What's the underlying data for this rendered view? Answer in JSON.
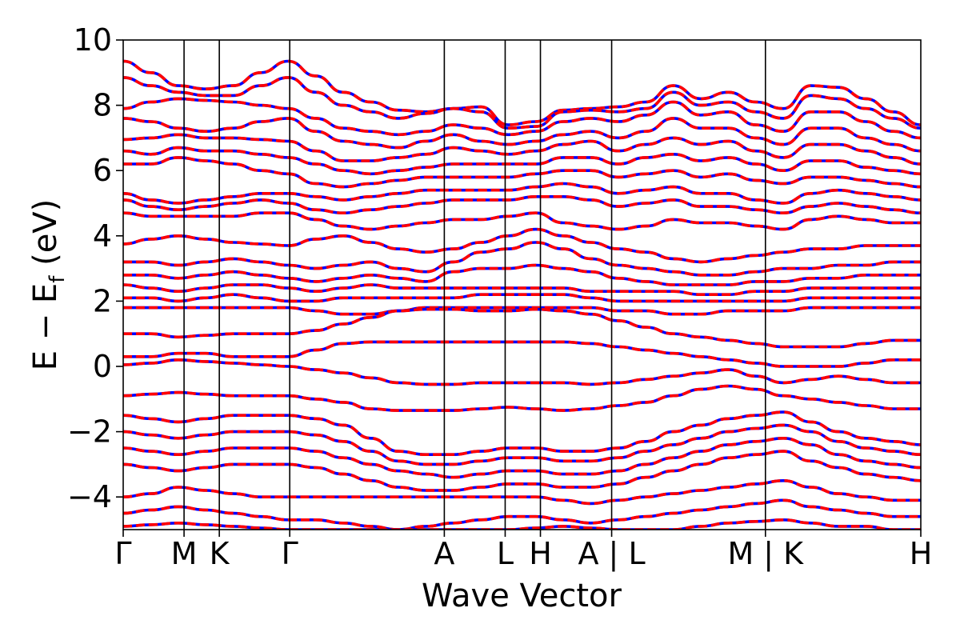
{
  "chart_data": {
    "type": "line",
    "xlabel": "Wave Vector",
    "ylabel_main": "E − E",
    "ylabel_sub": "f",
    "ylabel_unit": " (eV)",
    "ylim": [
      -5,
      10
    ],
    "yticks": [
      {
        "value": -4,
        "label": "−4"
      },
      {
        "value": -2,
        "label": "−2"
      },
      {
        "value": 0,
        "label": "0"
      },
      {
        "value": 2,
        "label": "2"
      },
      {
        "value": 4,
        "label": "4"
      },
      {
        "value": 6,
        "label": "6"
      },
      {
        "value": 8,
        "label": "8"
      },
      {
        "value": 10,
        "label": "10"
      }
    ],
    "xlim": [
      0,
      1
    ],
    "kpoints": [
      {
        "label": "Γ",
        "pos": 0.0
      },
      {
        "label": "M",
        "pos": 0.0763
      },
      {
        "label": "K",
        "pos": 0.1205
      },
      {
        "label": "Γ",
        "pos": 0.2088
      },
      {
        "label": "A",
        "pos": 0.4026
      },
      {
        "label": "L",
        "pos": 0.4789
      },
      {
        "label": "H",
        "pos": 0.5231
      },
      {
        "label": "A | L",
        "pos": 0.6124
      },
      {
        "label": "M | K",
        "pos": 0.8052
      },
      {
        "label": "H",
        "pos": 1.0
      }
    ],
    "series": [
      {
        "color": "#0000ff",
        "style": "solid"
      },
      {
        "color": "#ff0000",
        "style": "dashed"
      }
    ],
    "bands": [
      [
        9.35,
        9.0,
        8.6,
        8.5,
        8.6,
        9.0,
        9.35,
        8.9,
        8.4,
        8.1,
        7.85,
        7.8,
        7.9,
        7.95,
        7.4,
        7.5,
        7.85,
        7.9,
        7.95,
        8.1,
        8.6,
        8.2,
        8.4,
        8.1,
        7.9,
        8.6,
        8.55,
        8.2,
        7.8,
        7.4
      ],
      [
        8.85,
        8.6,
        8.4,
        8.3,
        8.3,
        8.6,
        8.85,
        8.4,
        8.0,
        7.8,
        7.6,
        7.75,
        7.9,
        7.8,
        7.3,
        7.35,
        7.8,
        7.85,
        7.8,
        7.9,
        8.4,
        8.0,
        8.1,
        7.8,
        7.6,
        8.3,
        8.2,
        7.9,
        7.6,
        7.3
      ],
      [
        7.9,
        8.1,
        8.2,
        8.15,
        8.1,
        8.0,
        7.9,
        7.6,
        7.3,
        7.2,
        7.1,
        7.2,
        7.4,
        7.3,
        7.1,
        7.2,
        7.5,
        7.6,
        7.5,
        7.7,
        8.1,
        7.7,
        7.8,
        7.4,
        7.2,
        7.8,
        7.8,
        7.5,
        7.2,
        7.0
      ],
      [
        7.6,
        7.5,
        7.3,
        7.2,
        7.3,
        7.5,
        7.6,
        7.2,
        6.9,
        6.8,
        6.7,
        6.9,
        7.1,
        6.9,
        6.8,
        6.9,
        7.1,
        7.2,
        7.0,
        7.2,
        7.6,
        7.3,
        7.3,
        7.0,
        6.8,
        7.3,
        7.3,
        7.0,
        6.8,
        6.6
      ],
      [
        6.95,
        7.0,
        7.1,
        7.0,
        7.0,
        6.95,
        6.9,
        6.6,
        6.3,
        6.3,
        6.4,
        6.5,
        6.7,
        6.6,
        6.5,
        6.6,
        6.8,
        6.9,
        6.6,
        6.8,
        7.0,
        6.8,
        6.9,
        6.6,
        6.4,
        6.8,
        6.8,
        6.6,
        6.4,
        6.2
      ],
      [
        6.6,
        6.5,
        6.7,
        6.6,
        6.6,
        6.5,
        6.4,
        6.2,
        6.0,
        5.9,
        6.0,
        6.1,
        6.2,
        6.2,
        6.2,
        6.2,
        6.4,
        6.4,
        6.2,
        6.4,
        6.5,
        6.3,
        6.4,
        6.2,
        6.0,
        6.3,
        6.3,
        6.1,
        6.0,
        5.9
      ],
      [
        6.2,
        6.2,
        6.4,
        6.3,
        6.2,
        6.0,
        5.9,
        5.6,
        5.5,
        5.6,
        5.7,
        5.8,
        5.8,
        5.8,
        5.8,
        5.9,
        6.0,
        6.0,
        5.8,
        5.9,
        6.0,
        5.8,
        5.9,
        5.7,
        5.6,
        5.8,
        5.8,
        5.7,
        5.6,
        5.5
      ],
      [
        5.3,
        5.1,
        5.0,
        5.1,
        5.2,
        5.3,
        5.3,
        5.2,
        5.1,
        5.2,
        5.3,
        5.4,
        5.4,
        5.4,
        5.4,
        5.5,
        5.6,
        5.5,
        5.3,
        5.4,
        5.5,
        5.3,
        5.3,
        5.1,
        5.0,
        5.3,
        5.4,
        5.3,
        5.2,
        5.1
      ],
      [
        5.1,
        4.9,
        4.8,
        4.9,
        5.0,
        5.1,
        5.0,
        4.8,
        4.7,
        4.8,
        4.9,
        5.0,
        5.1,
        5.1,
        5.1,
        5.2,
        5.2,
        5.1,
        4.9,
        5.0,
        5.1,
        4.9,
        4.9,
        4.8,
        4.7,
        4.9,
        5.0,
        4.9,
        4.8,
        4.7
      ],
      [
        4.7,
        4.6,
        4.6,
        4.6,
        4.6,
        4.7,
        4.7,
        4.5,
        4.3,
        4.2,
        4.3,
        4.4,
        4.5,
        4.5,
        4.6,
        4.7,
        4.4,
        4.3,
        4.2,
        4.3,
        4.5,
        4.4,
        4.4,
        4.3,
        4.2,
        4.5,
        4.6,
        4.5,
        4.4,
        4.4
      ],
      [
        3.75,
        3.9,
        4.0,
        3.9,
        3.8,
        3.75,
        3.7,
        3.9,
        4.0,
        3.8,
        3.6,
        3.5,
        3.6,
        3.8,
        4.0,
        4.2,
        4.0,
        3.8,
        3.6,
        3.5,
        3.3,
        3.2,
        3.3,
        3.4,
        3.5,
        3.6,
        3.6,
        3.7,
        3.7,
        3.7
      ],
      [
        3.2,
        3.2,
        3.1,
        3.2,
        3.3,
        3.2,
        3.1,
        3.0,
        3.1,
        3.2,
        3.0,
        2.9,
        3.2,
        3.5,
        3.6,
        3.8,
        3.6,
        3.3,
        3.1,
        3.0,
        2.9,
        2.8,
        2.8,
        2.9,
        3.0,
        3.0,
        3.1,
        3.1,
        3.2,
        3.2
      ],
      [
        2.8,
        2.8,
        2.7,
        2.8,
        2.9,
        2.8,
        2.7,
        2.6,
        2.7,
        2.8,
        2.7,
        2.6,
        2.9,
        3.0,
        3.0,
        3.1,
        3.0,
        2.9,
        2.7,
        2.6,
        2.5,
        2.5,
        2.5,
        2.6,
        2.6,
        2.7,
        2.7,
        2.8,
        2.8,
        2.8
      ],
      [
        2.5,
        2.4,
        2.3,
        2.4,
        2.5,
        2.5,
        2.4,
        2.3,
        2.4,
        2.5,
        2.4,
        2.4,
        2.4,
        2.4,
        2.4,
        2.4,
        2.4,
        2.3,
        2.3,
        2.3,
        2.3,
        2.2,
        2.2,
        2.3,
        2.3,
        2.4,
        2.4,
        2.4,
        2.4,
        2.4
      ],
      [
        2.1,
        2.1,
        2.0,
        2.1,
        2.2,
        2.1,
        2.0,
        2.0,
        2.1,
        2.1,
        2.1,
        2.1,
        2.1,
        2.2,
        2.2,
        2.2,
        2.2,
        2.1,
        2.0,
        2.0,
        2.0,
        2.0,
        2.0,
        2.0,
        2.0,
        2.1,
        2.1,
        2.1,
        2.1,
        2.1
      ],
      [
        1.8,
        1.8,
        1.8,
        1.8,
        1.8,
        1.8,
        1.8,
        1.7,
        1.6,
        1.6,
        1.7,
        1.8,
        1.8,
        1.8,
        1.8,
        1.8,
        1.8,
        1.8,
        1.7,
        1.7,
        1.6,
        1.6,
        1.7,
        1.7,
        1.7,
        1.8,
        1.8,
        1.8,
        1.8,
        1.8
      ],
      [
        1.0,
        1.0,
        0.9,
        0.95,
        1.0,
        1.0,
        1.0,
        1.1,
        1.3,
        1.5,
        1.7,
        1.75,
        1.75,
        1.7,
        1.7,
        1.75,
        1.7,
        1.6,
        1.4,
        1.2,
        1.0,
        0.9,
        0.8,
        0.7,
        0.6,
        0.6,
        0.6,
        0.7,
        0.8,
        0.8
      ],
      [
        0.3,
        0.3,
        0.4,
        0.4,
        0.3,
        0.3,
        0.3,
        0.5,
        0.7,
        0.75,
        0.75,
        0.75,
        0.75,
        0.75,
        0.75,
        0.75,
        0.75,
        0.7,
        0.6,
        0.5,
        0.4,
        0.3,
        0.2,
        0.1,
        0.0,
        0.0,
        0.0,
        0.1,
        0.2,
        0.2
      ],
      [
        0.05,
        0.1,
        0.2,
        0.15,
        0.1,
        0.05,
        0.0,
        -0.1,
        -0.2,
        -0.35,
        -0.5,
        -0.55,
        -0.55,
        -0.5,
        -0.5,
        -0.5,
        -0.5,
        -0.55,
        -0.5,
        -0.4,
        -0.3,
        -0.2,
        -0.1,
        -0.3,
        -0.5,
        -0.4,
        -0.3,
        -0.4,
        -0.5,
        -0.5
      ],
      [
        -0.9,
        -0.85,
        -0.8,
        -0.85,
        -0.9,
        -0.9,
        -0.9,
        -1.0,
        -1.1,
        -1.3,
        -1.35,
        -1.35,
        -1.35,
        -1.3,
        -1.25,
        -1.3,
        -1.35,
        -1.3,
        -1.2,
        -1.1,
        -0.9,
        -0.7,
        -0.6,
        -0.7,
        -0.9,
        -1.0,
        -1.1,
        -1.2,
        -1.3,
        -1.3
      ],
      [
        -1.5,
        -1.6,
        -1.7,
        -1.6,
        -1.5,
        -1.5,
        -1.5,
        -1.6,
        -1.8,
        -2.2,
        -2.6,
        -2.7,
        -2.7,
        -2.6,
        -2.5,
        -2.5,
        -2.6,
        -2.6,
        -2.5,
        -2.3,
        -2.0,
        -1.8,
        -1.6,
        -1.5,
        -1.4,
        -1.7,
        -2.0,
        -2.2,
        -2.3,
        -2.4
      ],
      [
        -2.0,
        -2.1,
        -2.2,
        -2.1,
        -2.0,
        -2.0,
        -2.0,
        -2.1,
        -2.3,
        -2.6,
        -2.9,
        -3.0,
        -3.0,
        -2.9,
        -2.8,
        -2.8,
        -2.9,
        -2.9,
        -2.8,
        -2.6,
        -2.4,
        -2.2,
        -2.0,
        -1.9,
        -1.8,
        -2.0,
        -2.3,
        -2.5,
        -2.6,
        -2.7
      ],
      [
        -2.5,
        -2.6,
        -2.7,
        -2.6,
        -2.5,
        -2.5,
        -2.5,
        -2.6,
        -2.8,
        -3.0,
        -3.2,
        -3.3,
        -3.4,
        -3.3,
        -3.2,
        -3.2,
        -3.3,
        -3.3,
        -3.2,
        -3.0,
        -2.8,
        -2.6,
        -2.4,
        -2.3,
        -2.2,
        -2.4,
        -2.7,
        -2.9,
        -3.0,
        -3.1
      ],
      [
        -3.0,
        -3.1,
        -3.2,
        -3.1,
        -3.0,
        -3.0,
        -3.0,
        -3.1,
        -3.3,
        -3.5,
        -3.7,
        -3.8,
        -3.8,
        -3.7,
        -3.6,
        -3.6,
        -3.7,
        -3.7,
        -3.6,
        -3.4,
        -3.2,
        -3.0,
        -2.8,
        -2.7,
        -2.6,
        -2.9,
        -3.1,
        -3.3,
        -3.4,
        -3.5
      ],
      [
        -4.0,
        -3.9,
        -3.7,
        -3.8,
        -3.9,
        -4.0,
        -4.0,
        -4.0,
        -4.0,
        -4.0,
        -4.0,
        -4.0,
        -4.0,
        -4.0,
        -4.0,
        -4.0,
        -4.1,
        -4.2,
        -4.1,
        -4.0,
        -3.9,
        -3.8,
        -3.7,
        -3.6,
        -3.5,
        -3.7,
        -3.9,
        -4.0,
        -4.1,
        -4.1
      ],
      [
        -4.5,
        -4.4,
        -4.3,
        -4.4,
        -4.5,
        -4.6,
        -4.7,
        -4.7,
        -4.8,
        -4.9,
        -5.0,
        -4.9,
        -4.8,
        -4.7,
        -4.6,
        -4.6,
        -4.7,
        -4.8,
        -4.7,
        -4.6,
        -4.5,
        -4.4,
        -4.3,
        -4.2,
        -4.1,
        -4.3,
        -4.4,
        -4.5,
        -4.6,
        -4.6
      ],
      [
        -4.9,
        -4.85,
        -4.8,
        -4.85,
        -4.9,
        -4.95,
        -5.0,
        -5.0,
        -5.0,
        -5.0,
        -5.0,
        -5.0,
        -5.0,
        -5.0,
        -5.0,
        -4.95,
        -4.9,
        -4.95,
        -5.0,
        -5.0,
        -5.0,
        -4.9,
        -4.8,
        -4.75,
        -4.7,
        -4.8,
        -4.9,
        -4.9,
        -5.0,
        -5.0
      ]
    ]
  }
}
